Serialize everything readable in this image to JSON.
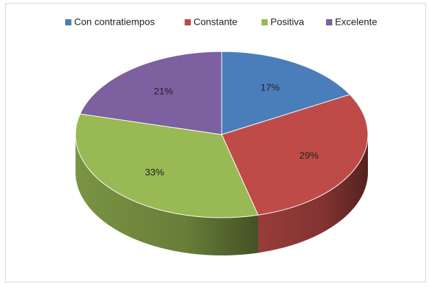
{
  "chart_data": {
    "type": "pie",
    "categories": [
      "Con contratiempos",
      "Constante",
      "Positiva",
      "Excelente"
    ],
    "values": [
      17,
      29,
      33,
      21
    ],
    "value_labels": [
      "17%",
      "29%",
      "33%",
      "21%"
    ],
    "colors": [
      "#4a7ebb",
      "#be4b48",
      "#98b954",
      "#7d60a0"
    ],
    "legend": "top"
  }
}
